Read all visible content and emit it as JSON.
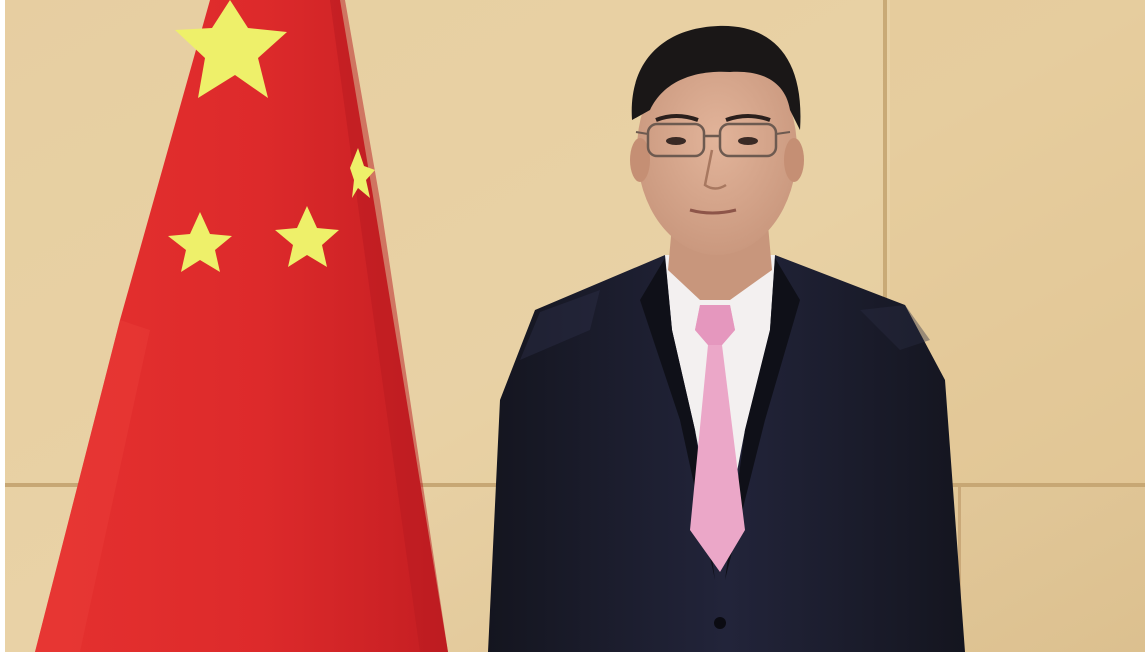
{
  "image": {
    "colors": {
      "wall": "#e2c89a",
      "wall_light": "#ecd5a8",
      "wall_joint": "#c9ab79",
      "flag_red": "#de2b2c",
      "flag_red_dark": "#c81f22",
      "star_yellow": "#eef06a",
      "suit": "#1b1c2a",
      "suit_shadow": "#101019",
      "shirt": "#f3f0f0",
      "tie": "#eba7c8",
      "skin": "#d8a98f",
      "hair": "#1a1717"
    }
  }
}
